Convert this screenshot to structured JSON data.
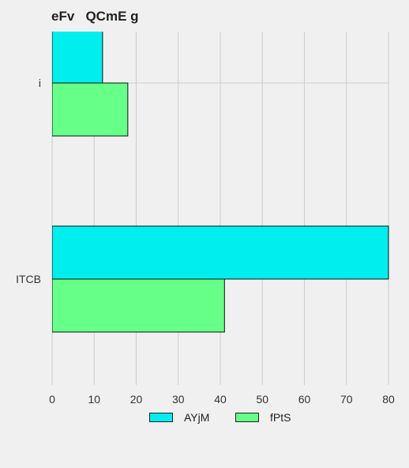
{
  "title": "eFv   QCmE g",
  "chart_data": {
    "type": "bar",
    "orientation": "horizontal",
    "categories": [
      "i",
      "ITCB"
    ],
    "series": [
      {
        "name": "AYjM",
        "color": "#00eeee",
        "values": [
          12,
          80
        ]
      },
      {
        "name": "fPtS",
        "color": "#66ff88",
        "values": [
          18,
          41
        ]
      }
    ],
    "xlim": [
      0,
      80
    ],
    "xticks": [
      0,
      10,
      20,
      30,
      40,
      50,
      60,
      70,
      80
    ],
    "grid": true,
    "legend": "bottom"
  }
}
